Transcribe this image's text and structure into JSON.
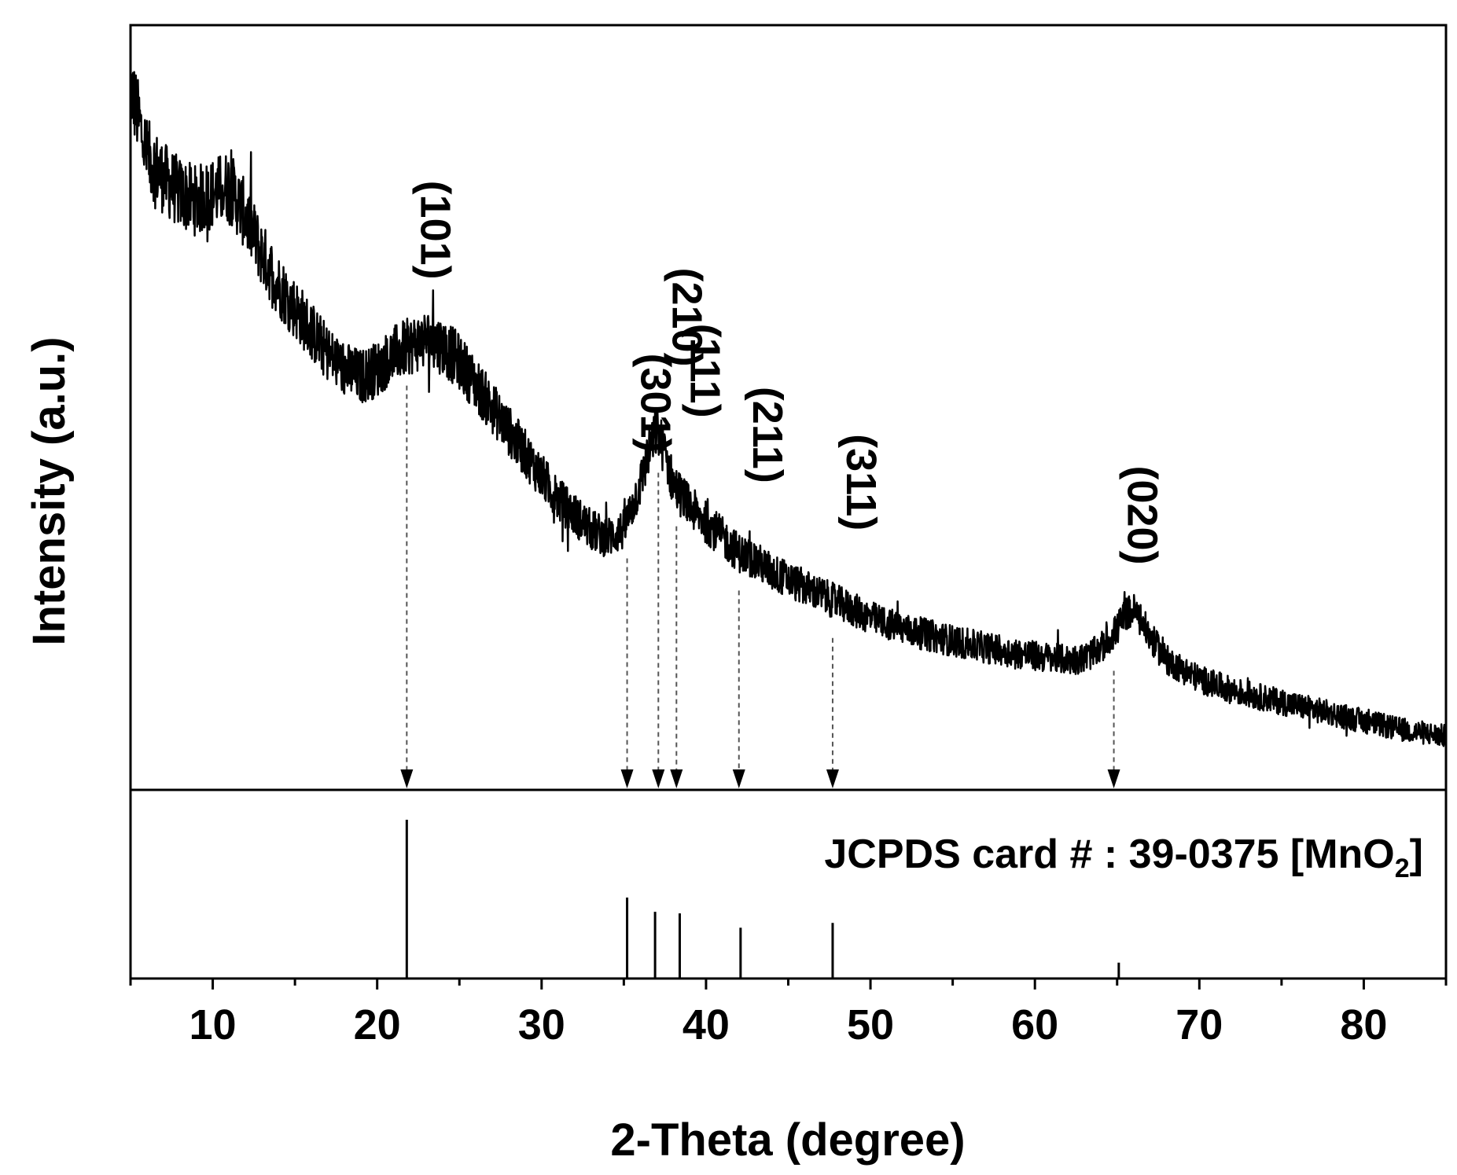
{
  "chart_data": {
    "type": "line",
    "xlabel": "2-Theta (degree)",
    "ylabel": "Intensity (a.u.)",
    "xlim": [
      5,
      85
    ],
    "xticks": [
      10,
      20,
      30,
      40,
      50,
      60,
      70,
      80
    ],
    "grid": false,
    "series": [
      {
        "x": [
          5,
          6,
          7,
          8,
          9,
          10,
          11,
          12,
          13,
          14,
          15,
          16,
          17,
          18,
          19,
          20,
          21,
          22,
          23,
          24,
          25,
          26,
          27,
          28,
          29,
          30,
          31,
          32,
          33,
          34,
          35,
          36,
          36.5,
          37,
          37.5,
          38,
          39,
          40,
          41,
          42,
          43,
          44,
          45,
          46,
          47,
          48,
          49,
          50,
          52,
          54,
          56,
          58,
          60,
          62,
          63,
          64,
          65,
          65.5,
          66,
          66.5,
          67,
          68,
          70,
          72,
          74,
          76,
          78,
          80,
          82,
          85
        ],
        "y": [
          92,
          83,
          80,
          78,
          77,
          78,
          79,
          75,
          70,
          66,
          63,
          60,
          57,
          55,
          54,
          55,
          57,
          58,
          59,
          58,
          56,
          53,
          50,
          47,
          44,
          41,
          38,
          36,
          34,
          33,
          34,
          40,
          44,
          47,
          44,
          40,
          37,
          35,
          33,
          31,
          30,
          28.5,
          27.5,
          26.5,
          25.5,
          24.5,
          23.5,
          22.5,
          21,
          20,
          19,
          18.2,
          17.5,
          17,
          17.2,
          18.5,
          21,
          23,
          23.5,
          22,
          20,
          17,
          14.5,
          13,
          12,
          11,
          10,
          9,
          8,
          7
        ]
      }
    ],
    "peaks": [
      {
        "label": "(101)",
        "x": 21.8
      },
      {
        "label": "(301)",
        "x": 35.2
      },
      {
        "label": "(210)",
        "x": 37.1
      },
      {
        "label": "(111)",
        "x": 38.2
      },
      {
        "label": "(211)",
        "x": 42.0
      },
      {
        "label": "(311)",
        "x": 47.7
      },
      {
        "label": "(020)",
        "x": 64.8
      }
    ],
    "reference": {
      "label_main": "JCPDS card # : 39-0375 [MnO",
      "label_sub": "2",
      "label_end": "]",
      "lines": [
        {
          "x": 21.8,
          "intensity": 100
        },
        {
          "x": 35.2,
          "intensity": 51
        },
        {
          "x": 36.9,
          "intensity": 42
        },
        {
          "x": 38.4,
          "intensity": 41
        },
        {
          "x": 42.1,
          "intensity": 32
        },
        {
          "x": 47.7,
          "intensity": 35
        },
        {
          "x": 65.1,
          "intensity": 10
        }
      ]
    }
  }
}
